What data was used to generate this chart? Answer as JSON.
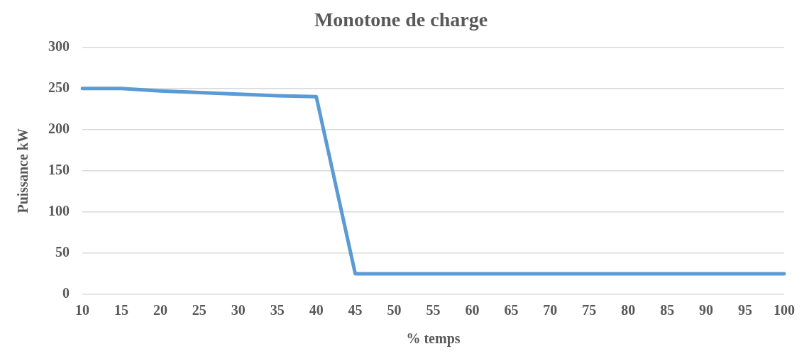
{
  "chart_data": {
    "type": "line",
    "title": "Monotone de charge",
    "xlabel": "% temps",
    "ylabel": "Puissance kW",
    "categories": [
      "10",
      "15",
      "20",
      "25",
      "30",
      "35",
      "40",
      "45",
      "50",
      "55",
      "60",
      "65",
      "70",
      "75",
      "80",
      "85",
      "90",
      "95",
      "100"
    ],
    "series": [
      {
        "color": "#5b9bd5",
        "values": [
          250,
          250,
          247,
          245,
          243,
          241,
          240,
          25,
          25,
          25,
          25,
          25,
          25,
          25,
          25,
          25,
          25,
          25,
          25
        ]
      }
    ],
    "ylim": [
      0,
      300
    ],
    "yticks": [
      0,
      50,
      100,
      150,
      200,
      250,
      300
    ],
    "grid": "y",
    "legend": false,
    "marker": "none",
    "line_style": "solid"
  }
}
